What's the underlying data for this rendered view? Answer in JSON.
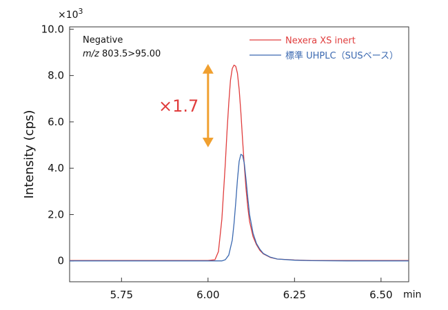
{
  "chart_data": {
    "type": "line",
    "ylabel": "Intensity (cps)",
    "xlabel": "min",
    "y_multiplier": {
      "base": "×10",
      "exponent": "3"
    },
    "xlim": [
      5.6,
      6.58
    ],
    "ylim": [
      -0.9,
      10.1
    ],
    "x_ticks": [
      5.75,
      6.0,
      6.25,
      6.5
    ],
    "x_tick_labels": [
      "5.75",
      "6.00",
      "6.25",
      "6.50"
    ],
    "y_ticks": [
      0,
      2,
      4,
      6,
      8,
      10
    ],
    "y_tick_labels": [
      "0",
      "2.0",
      "4.0",
      "6.0",
      "8.0",
      "10.0"
    ],
    "grid": false,
    "annotation_mode": "Negative",
    "annotation_mz_prefix": "m/z",
    "annotation_mz_value": " 803.5>95.00",
    "ratio_label": "×1.7",
    "ratio_arrow": {
      "x": 6.0,
      "y_from": 4.9,
      "y_to": 8.5,
      "color": "#f0a030"
    },
    "legend_position": "top-right",
    "series": [
      {
        "name": "Nexera XS inert",
        "color": "#e03c3c",
        "x": [
          5.6,
          5.9,
          6.0,
          6.02,
          6.03,
          6.04,
          6.05,
          6.055,
          6.06,
          6.065,
          6.07,
          6.075,
          6.08,
          6.085,
          6.09,
          6.095,
          6.1,
          6.105,
          6.11,
          6.115,
          6.12,
          6.13,
          6.14,
          6.15,
          6.16,
          6.18,
          6.2,
          6.25,
          6.3,
          6.4,
          6.58
        ],
        "values": [
          0.02,
          0.02,
          0.02,
          0.05,
          0.4,
          1.8,
          4.2,
          5.6,
          6.8,
          7.8,
          8.3,
          8.45,
          8.4,
          8.1,
          7.4,
          6.4,
          5.2,
          4.1,
          3.1,
          2.3,
          1.7,
          1.05,
          0.7,
          0.45,
          0.3,
          0.15,
          0.08,
          0.04,
          0.02,
          0.02,
          0.02
        ]
      },
      {
        "name": "標準 UHPLC（SUSベース）",
        "color": "#3a68b0",
        "x": [
          5.6,
          5.9,
          6.0,
          6.04,
          6.05,
          6.06,
          6.07,
          6.075,
          6.08,
          6.085,
          6.09,
          6.095,
          6.1,
          6.105,
          6.11,
          6.115,
          6.12,
          6.13,
          6.14,
          6.15,
          6.16,
          6.18,
          6.2,
          6.25,
          6.3,
          6.4,
          6.58
        ],
        "values": [
          0.0,
          0.0,
          0.0,
          0.0,
          0.05,
          0.25,
          0.9,
          1.6,
          2.5,
          3.5,
          4.3,
          4.6,
          4.55,
          4.2,
          3.5,
          2.7,
          2.0,
          1.2,
          0.75,
          0.5,
          0.32,
          0.16,
          0.08,
          0.03,
          0.01,
          0.0,
          0.0
        ]
      }
    ]
  }
}
